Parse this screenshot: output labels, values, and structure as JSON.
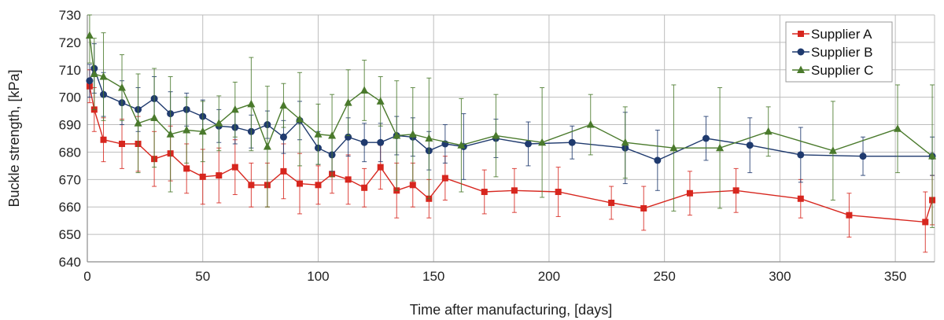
{
  "chart_data": {
    "type": "line",
    "title": "",
    "xlabel": "Time after manufacturing, [days]",
    "ylabel": "Buckle strength, [kPa]",
    "xlim": [
      0,
      367
    ],
    "ylim": [
      640,
      730
    ],
    "xticks": [
      "0",
      "50",
      "100",
      "150",
      "200",
      "250",
      "300",
      "350"
    ],
    "yticks": [
      "640",
      "650",
      "660",
      "670",
      "680",
      "690",
      "700",
      "710",
      "720",
      "730"
    ],
    "grid": true,
    "legend_position": "top-right",
    "series": [
      {
        "name": "Supplier A",
        "color": "#d7261e",
        "marker": "square",
        "points": [
          [
            1,
            704,
            6
          ],
          [
            3,
            695.5,
            8
          ],
          [
            7,
            684.5,
            8
          ],
          [
            15,
            683,
            9
          ],
          [
            22,
            683,
            10
          ],
          [
            29,
            677.5,
            10
          ],
          [
            36,
            679.5,
            10
          ],
          [
            43,
            674,
            9
          ],
          [
            50,
            671,
            10
          ],
          [
            57,
            671.5,
            10
          ],
          [
            64,
            674.5,
            10
          ],
          [
            71,
            668,
            8
          ],
          [
            78,
            668,
            8
          ],
          [
            85,
            673,
            10
          ],
          [
            92,
            668.5,
            11
          ],
          [
            100,
            668,
            7
          ],
          [
            106,
            672,
            7
          ],
          [
            113,
            670,
            9
          ],
          [
            120,
            667,
            7
          ],
          [
            127,
            674.5,
            8
          ],
          [
            134,
            666,
            10
          ],
          [
            141,
            668,
            8
          ],
          [
            148,
            663,
            7
          ],
          [
            155,
            670.5,
            8
          ],
          [
            172,
            665.5,
            8
          ],
          [
            185,
            666,
            8
          ],
          [
            204,
            665.5,
            9
          ],
          [
            227,
            661.5,
            6
          ],
          [
            241,
            659.5,
            8
          ],
          [
            261,
            665,
            8
          ],
          [
            281,
            666,
            8
          ],
          [
            309,
            663,
            7
          ],
          [
            330,
            657,
            8
          ],
          [
            363,
            654.5,
            11
          ],
          [
            366,
            662.5,
            9
          ]
        ]
      },
      {
        "name": "Supplier B",
        "color": "#1f3a6e",
        "marker": "circle",
        "points": [
          [
            1,
            706,
            6
          ],
          [
            3,
            710.5,
            9
          ],
          [
            7,
            701,
            8
          ],
          [
            15,
            698,
            8
          ],
          [
            22,
            695.5,
            8
          ],
          [
            29,
            699.5,
            8
          ],
          [
            36,
            694,
            8
          ],
          [
            43,
            695.5,
            6
          ],
          [
            50,
            693,
            6
          ],
          [
            57,
            689.5,
            6
          ],
          [
            64,
            689,
            6
          ],
          [
            71,
            687.5,
            6
          ],
          [
            78,
            690,
            5
          ],
          [
            85,
            685.5,
            6
          ],
          [
            92,
            691.5,
            7
          ],
          [
            100,
            681.5,
            6
          ],
          [
            106,
            679,
            6
          ],
          [
            113,
            685.5,
            7
          ],
          [
            120,
            683.5,
            7
          ],
          [
            127,
            683.5,
            7
          ],
          [
            134,
            686,
            7
          ],
          [
            141,
            685.5,
            7
          ],
          [
            148,
            680.5,
            7
          ],
          [
            155,
            683,
            7
          ],
          [
            163,
            682,
            12
          ],
          [
            177,
            685,
            7
          ],
          [
            191,
            683,
            8
          ],
          [
            210,
            683.5,
            6
          ],
          [
            233,
            681.5,
            13
          ],
          [
            247,
            677,
            11
          ],
          [
            268,
            685,
            8
          ],
          [
            287,
            682.5,
            10
          ],
          [
            309,
            679,
            10
          ],
          [
            336,
            678.5,
            7
          ],
          [
            366,
            678.5,
            7
          ]
        ]
      },
      {
        "name": "Supplier C",
        "color": "#4a7a2c",
        "marker": "triangle",
        "points": [
          [
            1,
            722.5,
            10
          ],
          [
            3,
            708.5,
            13
          ],
          [
            7,
            707.5,
            16
          ],
          [
            15,
            703.5,
            12
          ],
          [
            22,
            690.5,
            18
          ],
          [
            29,
            692.5,
            18
          ],
          [
            36,
            686.5,
            21
          ],
          [
            43,
            688,
            12
          ],
          [
            50,
            687.5,
            11
          ],
          [
            57,
            690.5,
            10
          ],
          [
            64,
            695.5,
            10
          ],
          [
            71,
            697.5,
            17
          ],
          [
            78,
            682,
            22
          ],
          [
            85,
            697,
            8
          ],
          [
            92,
            692,
            17
          ],
          [
            100,
            686.5,
            11
          ],
          [
            106,
            686,
            15
          ],
          [
            113,
            698,
            12
          ],
          [
            120,
            702.5,
            11
          ],
          [
            127,
            698.5,
            9
          ],
          [
            134,
            686,
            20
          ],
          [
            141,
            686.5,
            17
          ],
          [
            148,
            685,
            22
          ],
          [
            162,
            682.5,
            17
          ],
          [
            177,
            686,
            15
          ],
          [
            197,
            683.5,
            20
          ],
          [
            218,
            690,
            11
          ],
          [
            233,
            683.5,
            13
          ],
          [
            254,
            681.5,
            23
          ],
          [
            274,
            681.5,
            22
          ],
          [
            295,
            687.5,
            9
          ],
          [
            323,
            680.5,
            18
          ],
          [
            351,
            688.5,
            16
          ],
          [
            366,
            678.5,
            26
          ]
        ]
      }
    ]
  }
}
